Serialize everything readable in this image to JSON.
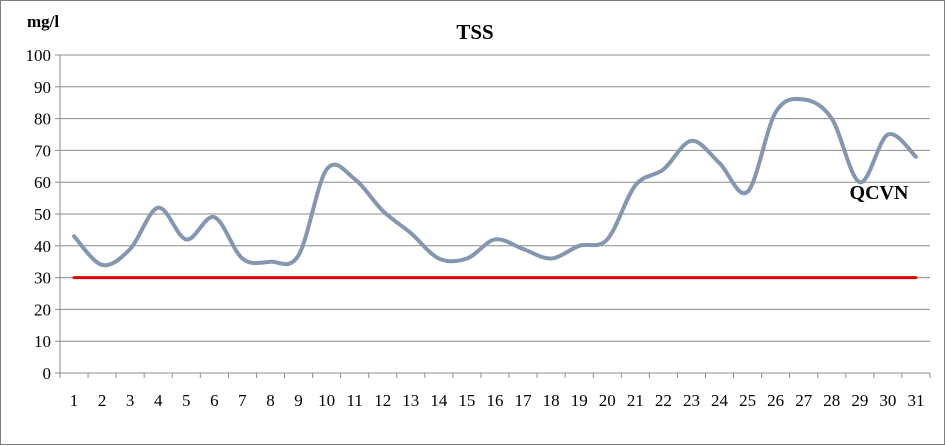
{
  "chart_data": {
    "type": "line",
    "title": "TSS",
    "ylabel": "mg/l",
    "xlabel": "",
    "ylim": [
      0,
      100
    ],
    "yticks": [
      0,
      10,
      20,
      30,
      40,
      50,
      60,
      70,
      80,
      90,
      100
    ],
    "x": [
      1,
      2,
      3,
      4,
      5,
      6,
      7,
      8,
      9,
      10,
      11,
      12,
      13,
      14,
      15,
      16,
      17,
      18,
      19,
      20,
      21,
      22,
      23,
      24,
      25,
      26,
      27,
      28,
      29,
      30,
      31
    ],
    "grid": "horizontal",
    "legend": "none",
    "series": [
      {
        "color": "#8496b0",
        "values": [
          43,
          34,
          39,
          52,
          42,
          49,
          36,
          35,
          37,
          64,
          61,
          51,
          44,
          36,
          36,
          42,
          39,
          36,
          40,
          42,
          59,
          64,
          73,
          66,
          57,
          82,
          86,
          80,
          60,
          75,
          68
        ]
      },
      {
        "name": "QCVN",
        "color": "#e00000",
        "values": [
          30,
          30,
          30,
          30,
          30,
          30,
          30,
          30,
          30,
          30,
          30,
          30,
          30,
          30,
          30,
          30,
          30,
          30,
          30,
          30,
          30,
          30,
          30,
          30,
          30,
          30,
          30,
          30,
          30,
          30,
          30
        ]
      }
    ],
    "annotations": [
      {
        "text": "QCVN",
        "near_x": 29,
        "near_y": 58
      }
    ]
  }
}
